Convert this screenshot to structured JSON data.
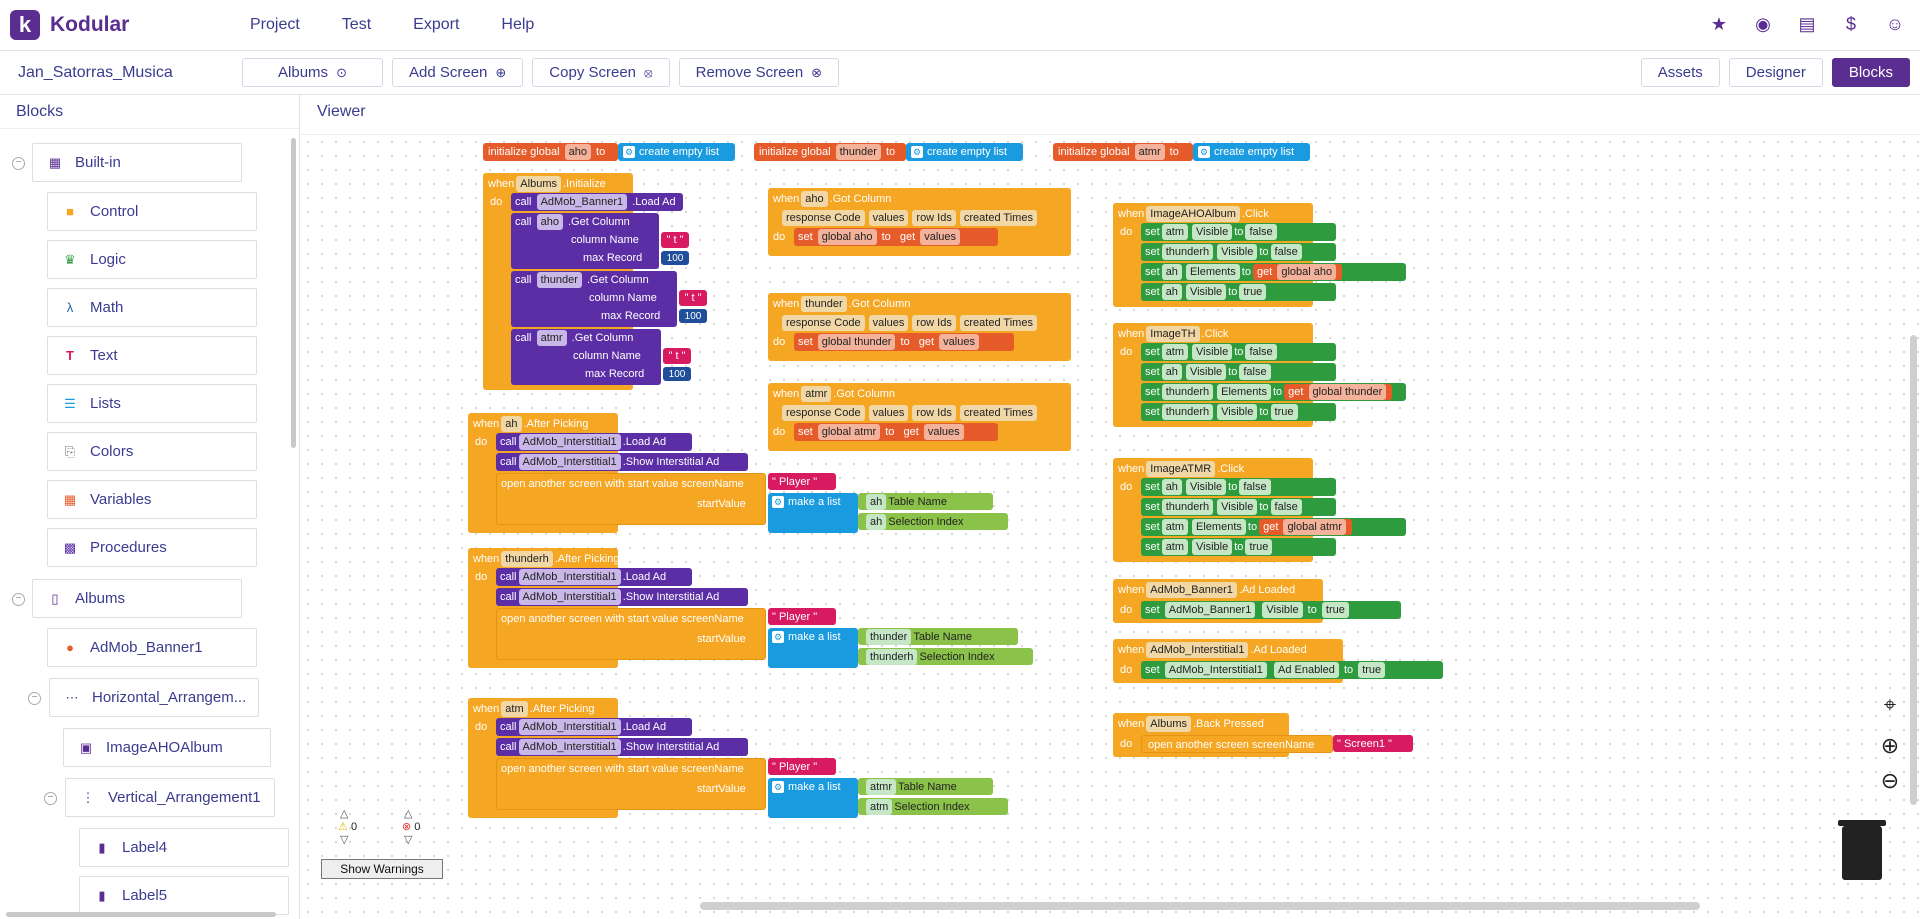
{
  "app": {
    "name": "Kodular",
    "logo_letter": "k"
  },
  "menu": [
    "Project",
    "Test",
    "Export",
    "Help"
  ],
  "top_icons": [
    "folder-star-icon",
    "palette-icon",
    "library-icon",
    "dollar-icon",
    "account-icon"
  ],
  "project_name": "Jan_Satorras_Musica",
  "screen_bar": {
    "screen_select": "Albums",
    "add_screen": "Add Screen",
    "copy_screen": "Copy Screen",
    "remove_screen": "Remove Screen"
  },
  "right_buttons": {
    "assets": "Assets",
    "designer": "Designer",
    "blocks": "Blocks"
  },
  "sidebar": {
    "title": "Blocks",
    "builtin": "Built-in",
    "builtin_items": [
      "Control",
      "Logic",
      "Math",
      "Text",
      "Lists",
      "Colors",
      "Variables",
      "Procedures"
    ],
    "albums": "Albums",
    "components": [
      "AdMob_Banner1",
      "Horizontal_Arrangem...",
      "ImageAHOAlbum",
      "Vertical_Arrangement1",
      "Label4",
      "Label5"
    ]
  },
  "viewer_title": "Viewer",
  "warnings": {
    "warn_count": "0",
    "error_count": "0",
    "button": "Show Warnings"
  },
  "blocks": {
    "init_aho": {
      "prefix": "initialize global",
      "name": "aho",
      "to": "to",
      "value": "create empty list"
    },
    "init_thunder": {
      "prefix": "initialize global",
      "name": "thunder",
      "to": "to",
      "value": "create empty list"
    },
    "init_atmr": {
      "prefix": "initialize global",
      "name": "atmr",
      "to": "to",
      "value": "create empty list"
    },
    "albums_init": {
      "when": "when",
      "comp": "Albums",
      "event": ".Initialize",
      "do": "do",
      "call": "call",
      "banner": "AdMob_Banner1",
      "loadad": ".Load Ad",
      "getcol": ".Get Column",
      "colname": "column Name",
      "maxrec": "max Record",
      "items": [
        {
          "comp": "aho",
          "col": "\" t \"",
          "max": "100"
        },
        {
          "comp": "thunder",
          "col": "\" t \"",
          "max": "100"
        },
        {
          "comp": "atmr",
          "col": "\" t \"",
          "max": "100"
        }
      ]
    },
    "gotcolumn": [
      {
        "comp": "aho",
        "var": "global aho"
      },
      {
        "comp": "thunder",
        "var": "global thunder"
      },
      {
        "comp": "atmr",
        "var": "global atmr"
      }
    ],
    "gotcolumn_labels": {
      "event": ".Got Column",
      "params": [
        "response Code",
        "values",
        "row Ids",
        "created Times"
      ],
      "set": "set",
      "to": "to",
      "get": "get",
      "values": "values"
    },
    "afterpicking": [
      {
        "comp": "ah",
        "list1": "ah",
        "list2": "ah"
      },
      {
        "comp": "thunderh",
        "list1": "thunder",
        "list2": "thunderh"
      },
      {
        "comp": "atm",
        "list1": "atmr",
        "list2": "atm"
      }
    ],
    "afterpicking_labels": {
      "event": ".After Picking",
      "inter": "AdMob_Interstitial1",
      "loadad": ".Load Ad",
      "showad": ".Show Interstitial Ad",
      "open": "open another screen with start value",
      "screenname": "screenName",
      "player": "\" Player \"",
      "startvalue": "startValue",
      "makelist": "make a list",
      "tablename": "Table Name",
      "selindex": "Selection Index"
    },
    "clicks": [
      {
        "comp": "ImageAHOAlbum",
        "rows": [
          {
            "target": "atm",
            "prop": "Visible",
            "val": "false",
            "type": "bool"
          },
          {
            "target": "thunderh",
            "prop": "Visible",
            "val": "false",
            "type": "bool"
          },
          {
            "target": "ah",
            "prop": "Elements",
            "val": "global aho",
            "type": "get"
          },
          {
            "target": "ah",
            "prop": "Visible",
            "val": "true",
            "type": "bool"
          }
        ]
      },
      {
        "comp": "ImageTH",
        "rows": [
          {
            "target": "atm",
            "prop": "Visible",
            "val": "false",
            "type": "bool"
          },
          {
            "target": "ah",
            "prop": "Visible",
            "val": "false",
            "type": "bool"
          },
          {
            "target": "thunderh",
            "prop": "Elements",
            "val": "global thunder",
            "type": "get"
          },
          {
            "target": "thunderh",
            "prop": "Visible",
            "val": "true",
            "type": "bool"
          }
        ]
      },
      {
        "comp": "ImageATMR",
        "rows": [
          {
            "target": "ah",
            "prop": "Visible",
            "val": "false",
            "type": "bool"
          },
          {
            "target": "thunderh",
            "prop": "Visible",
            "val": "false",
            "type": "bool"
          },
          {
            "target": "atm",
            "prop": "Elements",
            "val": "global atmr",
            "type": "get"
          },
          {
            "target": "atm",
            "prop": "Visible",
            "val": "true",
            "type": "bool"
          }
        ]
      }
    ],
    "click_event": ".Click",
    "banner_loaded": {
      "comp": "AdMob_Banner1",
      "event": ".Ad Loaded",
      "target": "AdMob_Banner1",
      "prop": "Visible",
      "val": "true"
    },
    "inter_loaded": {
      "comp": "AdMob_Interstitial1",
      "event": ".Ad Loaded",
      "target": "AdMob_Interstitial1",
      "prop": "Ad Enabled",
      "val": "true"
    },
    "back_pressed": {
      "comp": "Albums",
      "event": ".Back Pressed",
      "open": "open another screen",
      "screenname": "screenName",
      "value": "\" Screen1 \""
    }
  }
}
